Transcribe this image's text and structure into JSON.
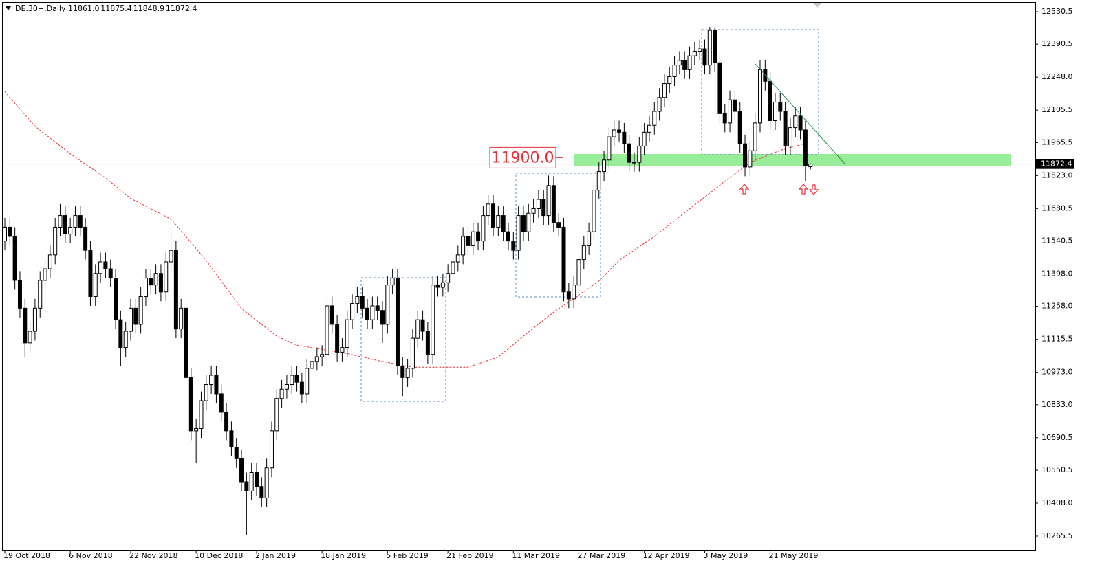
{
  "chart_data": {
    "type": "candlestick",
    "symbol": "DE.30+,Daily",
    "ohlc_labels": [
      "11861.0",
      "11875.4",
      "11848.9",
      "11872.4"
    ],
    "ylim": [
      10206,
      12581
    ],
    "yticks": [
      12530.5,
      12390.5,
      {
        "value": 12248,
        "label": "12248.0"
      },
      12105.5,
      11965.5,
      {
        "value": 11823,
        "label": "11823.0"
      },
      11680.5,
      11540.5,
      {
        "value": 11398,
        "label": "11398.0"
      },
      {
        "value": 11258,
        "label": "11258.0"
      },
      11115.5,
      {
        "value": 10973,
        "label": "10973.0"
      },
      {
        "value": 10833,
        "label": "10833.0"
      },
      10690.5,
      10550.5,
      {
        "value": 10408,
        "label": "10408.0"
      },
      10265.5
    ],
    "categories": [
      "19 Oct 2018",
      null,
      null,
      null,
      null,
      null,
      null,
      null,
      null,
      null,
      null,
      null,
      null,
      "6 Nov 2018",
      null,
      null,
      null,
      null,
      null,
      null,
      null,
      null,
      null,
      null,
      null,
      "22 Nov 2018",
      null,
      null,
      null,
      null,
      null,
      null,
      null,
      null,
      null,
      null,
      null,
      null,
      "10 Dec 2018",
      null,
      null,
      null,
      null,
      null,
      null,
      null,
      null,
      null,
      null,
      null,
      "2 Jan 2019",
      null,
      null,
      null,
      null,
      null,
      null,
      null,
      null,
      null,
      null,
      null,
      null,
      "18 Jan 2019",
      null,
      null,
      null,
      null,
      null,
      null,
      null,
      null,
      null,
      null,
      null,
      null,
      "5 Feb 2019",
      null,
      null,
      null,
      null,
      null,
      null,
      null,
      null,
      null,
      null,
      null,
      "21 Feb 2019",
      null,
      null,
      null,
      null,
      null,
      null,
      null,
      null,
      null,
      null,
      null,
      null,
      "11 Mar 2019",
      null,
      null,
      null,
      null,
      null,
      null,
      null,
      null,
      null,
      null,
      null,
      null,
      "27 Mar 2019",
      null,
      null,
      null,
      null,
      null,
      null,
      null,
      null,
      null,
      null,
      null,
      null,
      "12 Apr 2019",
      null,
      null,
      null,
      null,
      null,
      null,
      null,
      null,
      null,
      null,
      null,
      "3 May 2019",
      null,
      null,
      null,
      null,
      null,
      null,
      null,
      null,
      null,
      null,
      null,
      null,
      "21 May 2019",
      null,
      null,
      null,
      null,
      null,
      null,
      null,
      null
    ],
    "open": [
      11540,
      11600,
      11560,
      11370,
      11250,
      11100,
      11150,
      11250,
      11370,
      11420,
      11480,
      11600,
      11650,
      11570,
      11600,
      11650,
      11600,
      11500,
      11300,
      11400,
      11450,
      11420,
      11380,
      11200,
      11080,
      11150,
      11250,
      11180,
      11300,
      11380,
      11350,
      11400,
      11320,
      11450,
      11500,
      11160,
      11250,
      10950,
      10720,
      10730,
      10850,
      10920,
      10960,
      10880,
      10800,
      10720,
      10650,
      10600,
      10500,
      10460,
      10540,
      10480,
      10430,
      10560,
      10720,
      10860,
      10900,
      10920,
      10960,
      10930,
      10880,
      10990,
      11020,
      11040,
      11050,
      11260,
      11180,
      11060,
      11080,
      11200,
      11270,
      11300,
      11250,
      11200,
      11260,
      11240,
      11180,
      11350,
      11380,
      11000,
      10950,
      10990,
      11120,
      11200,
      11150,
      11050,
      11350,
      11340,
      11360,
      11400,
      11450,
      11480,
      11560,
      11520,
      11580,
      11540,
      11650,
      11700,
      11600,
      11650,
      11580,
      11540,
      11500,
      11650,
      11580,
      11660,
      11680,
      11720,
      11650,
      11780,
      11620,
      11600,
      11320,
      11290,
      11350,
      11460,
      11520,
      11580,
      11760,
      11840,
      11890,
      11990,
      12020,
      12010,
      11960,
      11880,
      11880,
      11950,
      12010,
      12040,
      12100,
      12160,
      12220,
      12250,
      12300,
      12320,
      12280,
      12340,
      12360,
      12370,
      12300,
      12450,
      12310,
      12090,
      12050,
      12150,
      12100,
      11960,
      11860,
      11930,
      12050,
      12280,
      12230,
      12060,
      12140,
      12100,
      11950,
      12030,
      12080,
      12020,
      11861
    ],
    "high": [
      11640,
      11640,
      11600,
      11410,
      11290,
      11190,
      11290,
      11410,
      11460,
      11520,
      11640,
      11700,
      11690,
      11640,
      11690,
      11690,
      11640,
      11540,
      11440,
      11490,
      11490,
      11460,
      11420,
      11240,
      11190,
      11290,
      11290,
      11340,
      11420,
      11420,
      11440,
      11440,
      11490,
      11580,
      11540,
      11290,
      11290,
      10990,
      10770,
      10890,
      10960,
      11000,
      11000,
      10920,
      10840,
      10760,
      10690,
      10640,
      10540,
      10580,
      10580,
      10520,
      10600,
      10760,
      10900,
      10940,
      10960,
      11000,
      11000,
      10970,
      11030,
      11060,
      11080,
      11090,
      11300,
      11300,
      11220,
      11120,
      11240,
      11310,
      11340,
      11340,
      11290,
      11300,
      11300,
      11280,
      11390,
      11420,
      11420,
      11040,
      11030,
      11160,
      11240,
      11240,
      11190,
      11390,
      11390,
      11400,
      11440,
      11490,
      11520,
      11600,
      11600,
      11620,
      11620,
      11690,
      11740,
      11740,
      11690,
      11690,
      11620,
      11580,
      11690,
      11690,
      11700,
      11720,
      11760,
      11760,
      11823,
      11820,
      11660,
      11640,
      11360,
      11390,
      11500,
      11560,
      11620,
      11800,
      11880,
      11930,
      12030,
      12060,
      12060,
      12050,
      12000,
      11920,
      11990,
      12050,
      12080,
      12140,
      12200,
      12260,
      12290,
      12340,
      12360,
      12360,
      12380,
      12400,
      12410,
      12410,
      12462,
      12460,
      12350,
      12130,
      12190,
      12190,
      12140,
      12000,
      11970,
      12090,
      12320,
      12320,
      12270,
      12180,
      12180,
      12140,
      12070,
      12120,
      12120,
      12060,
      11875.4
    ],
    "low": [
      11500,
      11520,
      11330,
      11210,
      11040,
      11060,
      11110,
      11210,
      11330,
      11380,
      11440,
      11560,
      11530,
      11530,
      11560,
      11560,
      11460,
      11260,
      11260,
      11360,
      11380,
      11340,
      11160,
      11000,
      11040,
      11110,
      11140,
      11140,
      11260,
      11310,
      11310,
      11280,
      11280,
      11410,
      11120,
      11120,
      10910,
      10680,
      10580,
      10690,
      10810,
      10880,
      10840,
      10760,
      10680,
      10610,
      10560,
      10460,
      10270,
      10420,
      10440,
      10390,
      10390,
      10520,
      10680,
      10820,
      10860,
      10880,
      10890,
      10840,
      10840,
      10950,
      10980,
      11000,
      11010,
      11140,
      11020,
      11020,
      11040,
      11160,
      11230,
      11210,
      11160,
      11160,
      11200,
      11100,
      11140,
      11310,
      10960,
      10870,
      10910,
      10950,
      11080,
      11110,
      11010,
      11010,
      11300,
      11300,
      11320,
      11360,
      11410,
      11440,
      11480,
      11480,
      11500,
      11500,
      11610,
      11560,
      11560,
      11540,
      11500,
      11460,
      11460,
      11540,
      11540,
      11620,
      11640,
      11610,
      11610,
      11580,
      11560,
      11280,
      11250,
      11250,
      11310,
      11420,
      11480,
      11540,
      11720,
      11800,
      11850,
      11950,
      11970,
      11920,
      11840,
      11840,
      11840,
      11910,
      11970,
      12000,
      12060,
      12120,
      12180,
      12210,
      12260,
      12240,
      12240,
      12300,
      12320,
      12260,
      12260,
      12270,
      12050,
      12010,
      12010,
      12060,
      11920,
      11820,
      11820,
      11890,
      12010,
      12190,
      12020,
      12020,
      12060,
      11910,
      11910,
      11990,
      11980,
      11800,
      11848.9
    ],
    "close": [
      11600,
      11560,
      11370,
      11250,
      11100,
      11150,
      11250,
      11370,
      11420,
      11480,
      11600,
      11650,
      11570,
      11600,
      11650,
      11600,
      11500,
      11300,
      11400,
      11450,
      11420,
      11380,
      11200,
      11080,
      11150,
      11250,
      11180,
      11300,
      11380,
      11350,
      11400,
      11320,
      11450,
      11500,
      11160,
      11250,
      10950,
      10720,
      10730,
      10850,
      10920,
      10960,
      10880,
      10800,
      10720,
      10650,
      10600,
      10500,
      10460,
      10540,
      10480,
      10430,
      10560,
      10720,
      10860,
      10900,
      10920,
      10960,
      10930,
      10880,
      10990,
      11020,
      11040,
      11050,
      11260,
      11180,
      11060,
      11080,
      11200,
      11270,
      11300,
      11250,
      11200,
      11260,
      11240,
      11180,
      11350,
      11380,
      11000,
      10950,
      10990,
      11120,
      11200,
      11150,
      11050,
      11350,
      11340,
      11360,
      11400,
      11450,
      11480,
      11560,
      11520,
      11580,
      11540,
      11650,
      11700,
      11600,
      11650,
      11580,
      11540,
      11500,
      11650,
      11580,
      11660,
      11680,
      11720,
      11650,
      11780,
      11620,
      11600,
      11320,
      11290,
      11350,
      11460,
      11520,
      11580,
      11760,
      11840,
      11890,
      11990,
      12020,
      12010,
      11960,
      11880,
      11880,
      11950,
      12010,
      12040,
      12100,
      12160,
      12220,
      12250,
      12300,
      12320,
      12280,
      12340,
      12360,
      12370,
      12300,
      12450,
      12310,
      12090,
      12050,
      12150,
      12100,
      11960,
      11860,
      11930,
      12050,
      12280,
      12230,
      12060,
      12140,
      12100,
      11950,
      12030,
      12080,
      12020,
      11865,
      11872.4
    ],
    "up_color": "#ffffff",
    "down_color": "#000000",
    "ma": {
      "color": "#e8303a",
      "x": [
        0,
        6,
        13,
        20,
        25,
        33,
        40,
        47,
        54,
        58,
        68,
        74,
        81,
        92,
        98,
        103,
        109,
        113,
        118,
        122,
        129,
        136,
        143,
        148,
        154,
        159
      ],
      "values": [
        12185,
        12036,
        11917,
        11813,
        11724,
        11635,
        11456,
        11248,
        11129,
        11090,
        11054,
        11024,
        10995,
        10995,
        11039,
        11129,
        11233,
        11292,
        11367,
        11456,
        11560,
        11679,
        11798,
        11879,
        11932,
        11962
      ]
    },
    "current_price": 11872.4,
    "annotation": {
      "value": 11900,
      "label": "11900.0"
    }
  }
}
